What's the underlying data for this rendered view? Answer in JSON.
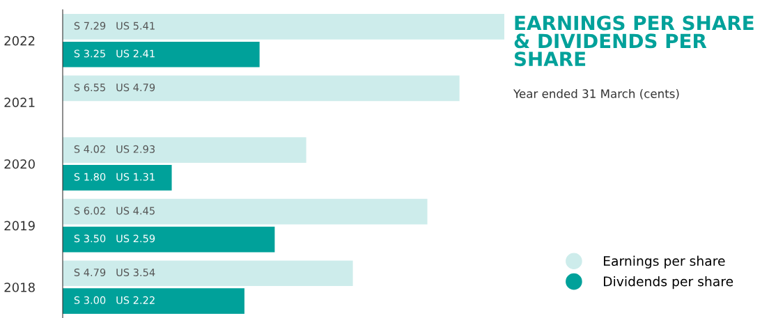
{
  "chart_data": {
    "type": "bar",
    "orientation": "horizontal",
    "title": "EARNINGS PER SHARE\n& DIVIDENDS PER\nSHARE",
    "subtitle": "Year ended 31 March (cents)",
    "categories": [
      "2022",
      "2021",
      "2020",
      "2019",
      "2018"
    ],
    "series": [
      {
        "name": "Earnings per share",
        "color": "#cdeceb",
        "values": [
          7.29,
          6.55,
          4.02,
          6.02,
          4.79
        ],
        "value_labels": [
          "S 7.29   US 5.41",
          "S 6.55   US 4.79",
          "S 4.02   US 2.93",
          "S 6.02   US 4.45",
          "S 4.79   US 3.54"
        ]
      },
      {
        "name": "Dividends per share",
        "color": "#00a19a",
        "values": [
          3.25,
          null,
          1.8,
          3.5,
          3.0
        ],
        "value_labels": [
          "S 3.25   US 2.41",
          null,
          "S 1.80   US 1.31",
          "S 3.50   US 2.59",
          "S 3.00   US 2.22"
        ]
      }
    ],
    "legend": "bottom right",
    "marker": "circle",
    "grid": false
  }
}
